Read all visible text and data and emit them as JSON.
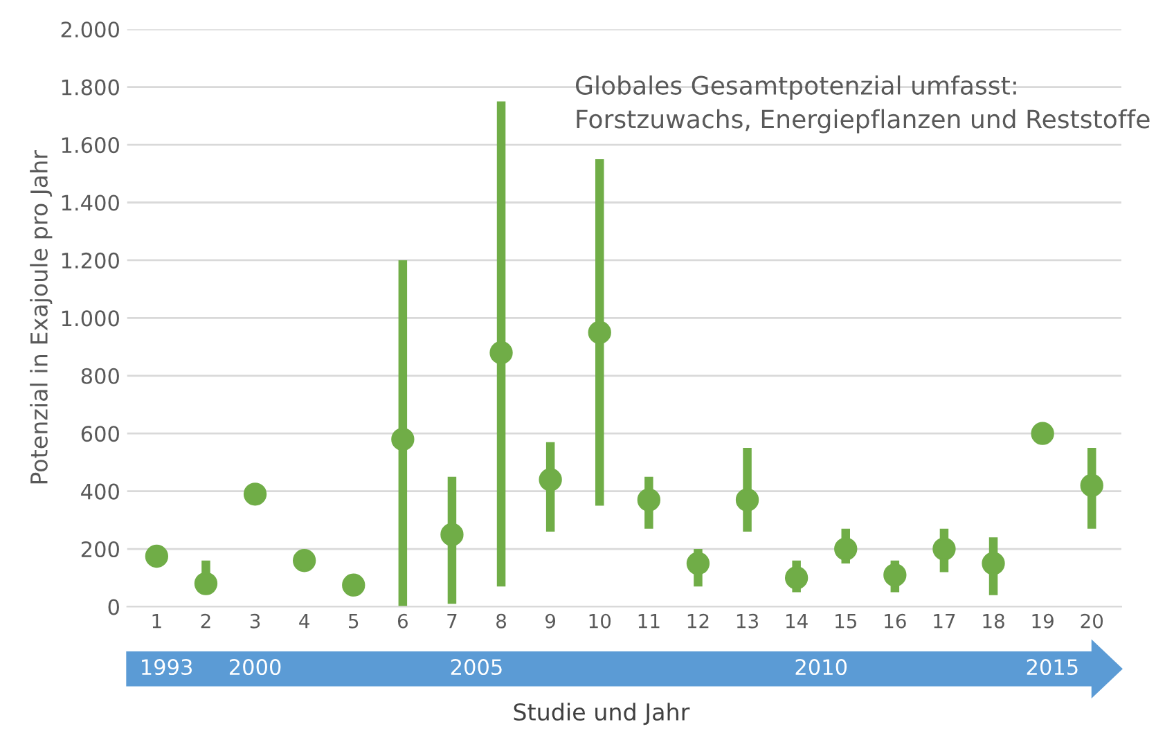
{
  "chart_data": {
    "type": "scatter",
    "xlabel": "Studie und Jahr",
    "ylabel": "Potenzial in Exajoule pro Jahr",
    "categories": [
      "1",
      "2",
      "3",
      "4",
      "5",
      "6",
      "7",
      "8",
      "9",
      "10",
      "11",
      "12",
      "13",
      "14",
      "15",
      "16",
      "17",
      "18",
      "19",
      "20"
    ],
    "series": [
      {
        "color": "#70ad47",
        "values": [
          175,
          80,
          390,
          160,
          75,
          580,
          250,
          880,
          440,
          950,
          370,
          150,
          370,
          100,
          200,
          110,
          200,
          150,
          600,
          420
        ],
        "errors": [
          null,
          [
            80,
            160
          ],
          null,
          null,
          null,
          [
            0,
            1200
          ],
          [
            10,
            450
          ],
          [
            70,
            1750
          ],
          [
            260,
            570
          ],
          [
            350,
            1550
          ],
          [
            270,
            450
          ],
          [
            70,
            200
          ],
          [
            260,
            550
          ],
          [
            50,
            160
          ],
          [
            150,
            270
          ],
          [
            50,
            160
          ],
          [
            120,
            270
          ],
          [
            40,
            240
          ],
          null,
          [
            270,
            550
          ]
        ]
      }
    ],
    "ylim": [
      0,
      2000
    ],
    "yticks": [
      0,
      200,
      400,
      600,
      800,
      {
        "value": 1000,
        "label": "1.000"
      },
      {
        "value": 1200,
        "label": "1.200"
      },
      {
        "value": 1400,
        "label": "1.400"
      },
      {
        "value": 1600,
        "label": "1.600"
      },
      {
        "value": 1800,
        "label": "1.800"
      },
      {
        "value": 2000,
        "label": "2.000"
      }
    ],
    "grid": "y",
    "marker": "circle",
    "legend": false,
    "annotations": [
      "Globales Gesamtpotenzial umfasst:\nForstzuwachs, Energiepflanzen und Reststoffe",
      "1993",
      "2000",
      "2005",
      "2010",
      "2015"
    ]
  }
}
